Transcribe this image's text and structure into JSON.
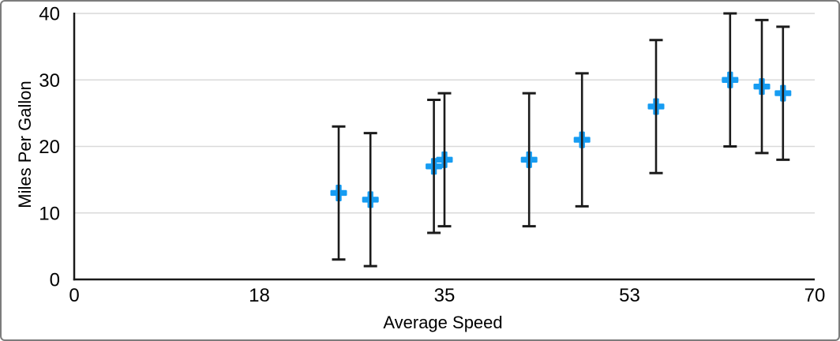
{
  "chart": {
    "x_axis_title": "Average Speed",
    "y_axis_title": "Miles Per Gallon"
  },
  "chart_data": {
    "type": "scatter",
    "title": "",
    "xlabel": "Average Speed",
    "ylabel": "Miles Per Gallon",
    "xlim": [
      0,
      70
    ],
    "ylim": [
      0,
      40
    ],
    "grid": true,
    "legend": "none",
    "x_ticks": [
      {
        "value": 0,
        "label": "0"
      },
      {
        "value": 17.5,
        "label": "18"
      },
      {
        "value": 35,
        "label": "35"
      },
      {
        "value": 52.5,
        "label": "53"
      },
      {
        "value": 70,
        "label": "70"
      }
    ],
    "y_ticks": [
      {
        "value": 0,
        "label": "0"
      },
      {
        "value": 10,
        "label": "10"
      },
      {
        "value": 20,
        "label": "20"
      },
      {
        "value": 30,
        "label": "30"
      },
      {
        "value": 40,
        "label": "40"
      }
    ],
    "series": [
      {
        "name": "Miles Per Gallon",
        "marker": "plus",
        "error_bars": {
          "type": "fixed",
          "plus": 10,
          "minus": 10
        },
        "points": [
          {
            "x": 25,
            "y": 13,
            "error_plus": 10,
            "error_minus": 10
          },
          {
            "x": 28,
            "y": 12,
            "error_plus": 10,
            "error_minus": 10
          },
          {
            "x": 34,
            "y": 17,
            "error_plus": 10,
            "error_minus": 10
          },
          {
            "x": 35,
            "y": 18,
            "error_plus": 10,
            "error_minus": 10
          },
          {
            "x": 43,
            "y": 18,
            "error_plus": 10,
            "error_minus": 10
          },
          {
            "x": 48,
            "y": 21,
            "error_plus": 10,
            "error_minus": 10
          },
          {
            "x": 55,
            "y": 26,
            "error_plus": 10,
            "error_minus": 10
          },
          {
            "x": 62,
            "y": 30,
            "error_plus": 10,
            "error_minus": 10
          },
          {
            "x": 65,
            "y": 29,
            "error_plus": 10,
            "error_minus": 10
          },
          {
            "x": 67,
            "y": 28,
            "error_plus": 10,
            "error_minus": 10
          }
        ]
      }
    ],
    "colors": {
      "marker": "#169CF2",
      "error_bar": "#1b1b1b",
      "axis": "#1a1a1a",
      "gridline": "#d9d9d9",
      "text": "#000000",
      "background": "#ffffff",
      "frame_border": "#7c7c7c"
    }
  }
}
